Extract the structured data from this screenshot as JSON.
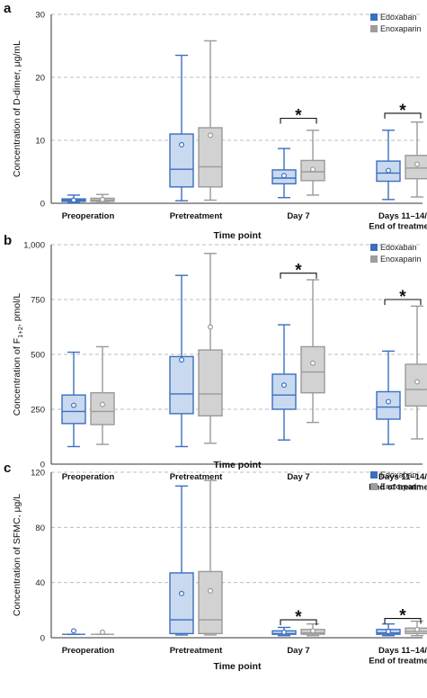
{
  "colors": {
    "edoxaban_edge": "#3a6fbf",
    "edoxaban_fill": "#c9d9ef",
    "enoxaparin_edge": "#9a9a9a",
    "enoxaparin_fill": "#d2d2d2",
    "grid": "#bdbdbd"
  },
  "chart_data": [
    {
      "type": "boxplot",
      "panel_label": "a",
      "ylabel": "Concentration of D-dimer, μg/mL",
      "xlabel": "Time point",
      "ylim": [
        0,
        30
      ],
      "yticks": [
        0,
        10,
        20,
        30
      ],
      "tick_labels": [
        "0",
        "10",
        "20",
        "30"
      ],
      "grid": true,
      "legend_position": "top-right",
      "categories": [
        [
          "Preoperation"
        ],
        [
          "Pretreatment"
        ],
        [
          "Day 7"
        ],
        [
          "Days 11–14/",
          "End of treatment"
        ]
      ],
      "series": [
        {
          "name": "Edoxaban",
          "boxes": [
            {
              "min": 0.1,
              "q1": 0.3,
              "median": 0.5,
              "q3": 0.7,
              "max": 1.3,
              "mean": 0.5
            },
            {
              "min": 0.4,
              "q1": 2.6,
              "median": 5.4,
              "q3": 11.0,
              "max": 23.5,
              "mean": 9.3
            },
            {
              "min": 0.9,
              "q1": 3.1,
              "median": 4.0,
              "q3": 5.3,
              "max": 8.7,
              "mean": 4.4
            },
            {
              "min": 0.6,
              "q1": 3.5,
              "median": 4.8,
              "q3": 6.7,
              "max": 11.6,
              "mean": 5.2
            }
          ]
        },
        {
          "name": "Enoxaparin",
          "boxes": [
            {
              "min": 0.1,
              "q1": 0.3,
              "median": 0.5,
              "q3": 0.8,
              "max": 1.4,
              "mean": 0.6
            },
            {
              "min": 0.5,
              "q1": 2.6,
              "median": 5.8,
              "q3": 12.0,
              "max": 25.8,
              "mean": 10.8
            },
            {
              "min": 1.3,
              "q1": 3.6,
              "median": 5.0,
              "q3": 6.8,
              "max": 11.6,
              "mean": 5.4
            },
            {
              "min": 1.0,
              "q1": 3.9,
              "median": 5.6,
              "q3": 7.6,
              "max": 12.9,
              "mean": 6.2
            }
          ]
        }
      ],
      "significance": [
        {
          "category": 2,
          "label": "*",
          "y": 13.5
        },
        {
          "category": 3,
          "label": "*",
          "y": 14.3
        }
      ]
    },
    {
      "type": "boxplot",
      "panel_label": "b",
      "ylabel_main": "Concentration of F",
      "ylabel_sub": "1+2",
      "ylabel_tail": ", pmol/L",
      "xlabel": "Time point",
      "ylim": [
        0,
        1000
      ],
      "yticks": [
        0,
        250,
        500,
        750,
        1000
      ],
      "tick_labels": [
        "0",
        "250",
        "500",
        "750",
        "1,000"
      ],
      "grid": true,
      "legend_position": "top-right",
      "categories": [
        [
          "Preoperation"
        ],
        [
          "Pretreatment"
        ],
        [
          "Day 7"
        ],
        [
          "Days 11–14/",
          "End of treatment"
        ]
      ],
      "series": [
        {
          "name": "Edoxaban",
          "boxes": [
            {
              "min": 80,
              "q1": 185,
              "median": 240,
              "q3": 315,
              "max": 510,
              "mean": 268
            },
            {
              "min": 80,
              "q1": 230,
              "median": 320,
              "q3": 490,
              "max": 860,
              "mean": 475
            },
            {
              "min": 110,
              "q1": 250,
              "median": 315,
              "q3": 410,
              "max": 635,
              "mean": 360
            },
            {
              "min": 90,
              "q1": 205,
              "median": 260,
              "q3": 330,
              "max": 515,
              "mean": 285
            }
          ]
        },
        {
          "name": "Enoxaparin",
          "boxes": [
            {
              "min": 90,
              "q1": 180,
              "median": 240,
              "q3": 325,
              "max": 535,
              "mean": 272
            },
            {
              "min": 95,
              "q1": 220,
              "median": 320,
              "q3": 520,
              "max": 960,
              "mean": 625
            },
            {
              "min": 190,
              "q1": 325,
              "median": 420,
              "q3": 535,
              "max": 840,
              "mean": 460
            },
            {
              "min": 115,
              "q1": 265,
              "median": 340,
              "q3": 455,
              "max": 720,
              "mean": 375
            }
          ]
        }
      ],
      "significance": [
        {
          "category": 2,
          "label": "*",
          "y": 870
        },
        {
          "category": 3,
          "label": "*",
          "y": 750
        }
      ]
    },
    {
      "type": "boxplot",
      "panel_label": "c",
      "ylabel": "Concentration of SFMC, μg/L",
      "xlabel": "Time point",
      "ylim": [
        0,
        120
      ],
      "yticks": [
        0,
        40,
        80,
        120
      ],
      "tick_labels": [
        "0",
        "40",
        "80",
        "120"
      ],
      "grid": true,
      "legend_position": "top-right",
      "categories": [
        [
          "Preoperation"
        ],
        [
          "Pretreatment"
        ],
        [
          "Day 7"
        ],
        [
          "Days 11–14/",
          "End of treatment"
        ]
      ],
      "series": [
        {
          "name": "Edoxaban",
          "boxes": [
            {
              "min": 2.5,
              "q1": 2.5,
              "median": 2.5,
              "q3": 2.5,
              "max": 2.5,
              "mean": 5
            },
            {
              "min": 2,
              "q1": 3,
              "median": 13,
              "q3": 47,
              "max": 110,
              "mean": 32
            },
            {
              "min": 1.5,
              "q1": 2.5,
              "median": 3,
              "q3": 5,
              "max": 7.5,
              "mean": 4
            },
            {
              "min": 1.5,
              "q1": 2.5,
              "median": 3.5,
              "q3": 6,
              "max": 10,
              "mean": 4.5
            }
          ]
        },
        {
          "name": "Enoxaparin",
          "boxes": [
            {
              "min": 2.5,
              "q1": 2.5,
              "median": 2.5,
              "q3": 2.5,
              "max": 2.5,
              "mean": 4
            },
            {
              "min": 2,
              "q1": 3,
              "median": 13,
              "q3": 48,
              "max": 114,
              "mean": 34
            },
            {
              "min": 1.5,
              "q1": 2.5,
              "median": 3.5,
              "q3": 6,
              "max": 10,
              "mean": 5
            },
            {
              "min": 1.5,
              "q1": 3,
              "median": 4.5,
              "q3": 7,
              "max": 12,
              "mean": 6
            }
          ]
        }
      ],
      "significance": [
        {
          "category": 2,
          "label": "*",
          "y": 13
        },
        {
          "category": 3,
          "label": "*",
          "y": 14
        }
      ]
    }
  ]
}
